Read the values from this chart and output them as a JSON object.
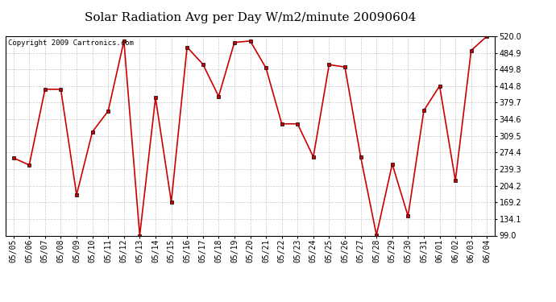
{
  "title": "Solar Radiation Avg per Day W/m2/minute 20090604",
  "copyright": "Copyright 2009 Cartronics.com",
  "dates": [
    "05/05",
    "05/06",
    "05/07",
    "05/08",
    "05/09",
    "05/10",
    "05/11",
    "05/12",
    "05/13",
    "05/14",
    "05/15",
    "05/16",
    "05/17",
    "05/18",
    "05/19",
    "05/20",
    "05/21",
    "05/22",
    "05/23",
    "05/24",
    "05/25",
    "05/26",
    "05/27",
    "05/28",
    "05/29",
    "05/30",
    "05/31",
    "06/01",
    "06/02",
    "06/03",
    "06/04"
  ],
  "values": [
    263,
    248,
    408,
    408,
    185,
    318,
    362,
    510,
    99,
    390,
    170,
    497,
    461,
    393,
    507,
    510,
    453,
    335,
    335,
    265,
    460,
    455,
    265,
    100,
    250,
    140,
    363,
    415,
    215,
    490,
    520
  ],
  "line_color": "#cc0000",
  "marker": "s",
  "marker_color": "#cc0000",
  "marker_size": 3,
  "bg_color": "#ffffff",
  "plot_bg_color": "#ffffff",
  "grid_color": "#bbbbbb",
  "ylim": [
    99.0,
    520.0
  ],
  "yticks": [
    99.0,
    134.1,
    169.2,
    204.2,
    239.3,
    274.4,
    309.5,
    344.6,
    379.7,
    414.8,
    449.8,
    484.9,
    520.0
  ],
  "title_fontsize": 11,
  "copyright_fontsize": 6.5,
  "tick_fontsize": 7,
  "ytick_fontsize": 7
}
